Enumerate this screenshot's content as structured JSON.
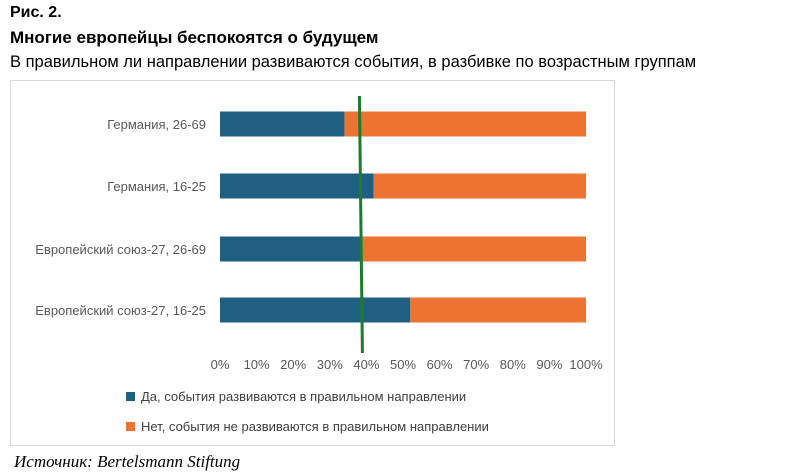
{
  "figure": {
    "label": "Рис. 2.",
    "title": "Многие европейцы беспокоятся о будущем",
    "subtitle": "В правильном ли направлении развиваются события, в разбивке по возрастным группам",
    "source": "Источник: Bertelsmann Stiftung"
  },
  "chart_data": {
    "type": "bar",
    "orientation": "horizontal",
    "stacked": true,
    "categories": [
      "Германия, 26-69",
      "Германия, 16-25",
      "Европейский союз-27, 26-69",
      "Европейский союз-27, 16-25"
    ],
    "series": [
      {
        "name": "Да, события развиваются в правильном направлении",
        "values": [
          34,
          42,
          39,
          52
        ],
        "color": "#1f5f82"
      },
      {
        "name": "Нет, события не развиваются в правильном направлении",
        "values": [
          66,
          58,
          61,
          48
        ],
        "color": "#ed7332"
      }
    ],
    "xlim": [
      0,
      100
    ],
    "x_ticks": [
      "0%",
      "10%",
      "20%",
      "30%",
      "40%",
      "50%",
      "60%",
      "70%",
      "80%",
      "90%",
      "100%"
    ],
    "reference_line": {
      "value": 38.5,
      "color": "#1f7a2e"
    },
    "legend_position": "bottom",
    "grid": false
  }
}
